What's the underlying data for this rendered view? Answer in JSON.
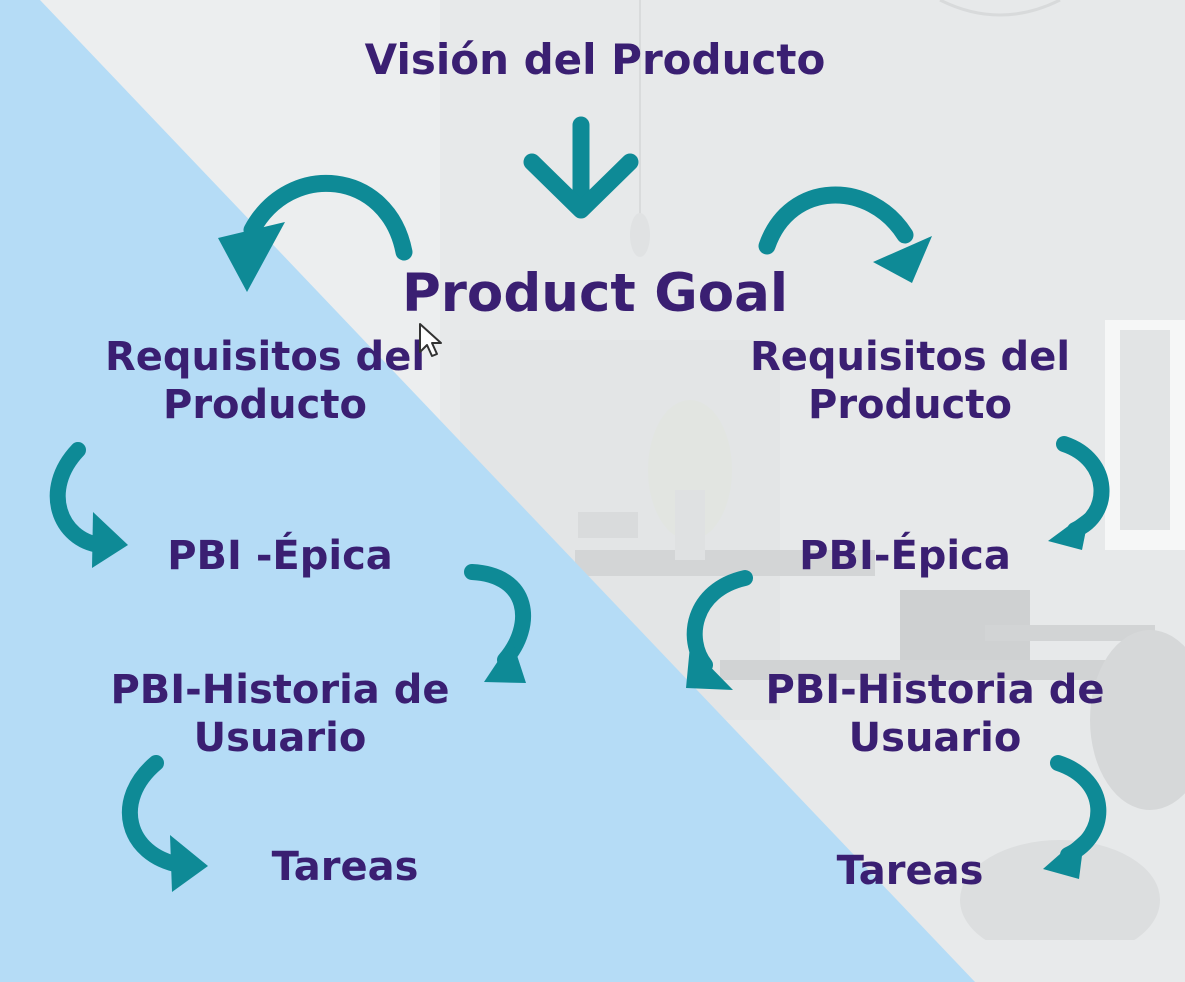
{
  "colors": {
    "text": "#3a1f72",
    "arrow": "#0e8a96",
    "left_background": "#b5dcf6",
    "right_background": "#eef0f1"
  },
  "vision": "Visión del Producto",
  "goal": "Product Goal",
  "left": {
    "requirements": [
      "Requisitos del",
      "Producto"
    ],
    "epic": "PBI -Épica",
    "story": [
      "PBI-Historia de",
      "Usuario"
    ],
    "tasks": "Tareas"
  },
  "right": {
    "requirements": [
      "Requisitos del",
      "Producto"
    ],
    "epic": "PBI-Épica",
    "story": [
      "PBI-Historia de",
      "Usuario"
    ],
    "tasks": "Tareas"
  },
  "icons": [
    "arrow-down-icon",
    "curved-arrow-left-icon",
    "curved-arrow-right-icon",
    "curved-arrow-down-icon",
    "mouse-cursor-icon"
  ]
}
